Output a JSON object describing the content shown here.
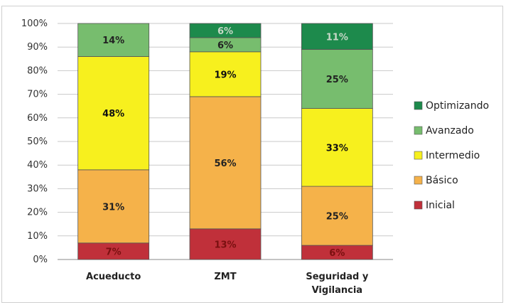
{
  "chart_data": {
    "type": "bar",
    "stacked": true,
    "percent": true,
    "categories": [
      [
        "Acueducto"
      ],
      [
        "ZMT"
      ],
      [
        "Seguridad y",
        "Vigilancia"
      ]
    ],
    "yticks": [
      "0%",
      "10%",
      "20%",
      "30%",
      "40%",
      "50%",
      "60%",
      "70%",
      "80%",
      "90%",
      "100%"
    ],
    "ylim": [
      0,
      100
    ],
    "grid": true,
    "legend_position": "right",
    "series": [
      {
        "name": "Inicial",
        "color": "#c0303a",
        "values": [
          7,
          13,
          6
        ],
        "labels": [
          "7%",
          "13%",
          "6%"
        ],
        "label_color": "#7a1010"
      },
      {
        "name": "Básico",
        "color": "#f5b24a",
        "values": [
          31,
          56,
          25
        ],
        "labels": [
          "31%",
          "56%",
          "25%"
        ],
        "label_color": "#222222"
      },
      {
        "name": "Intermedio",
        "color": "#f7f01e",
        "values": [
          48,
          19,
          33
        ],
        "labels": [
          "48%",
          "19%",
          "33%"
        ],
        "label_color": "#111111"
      },
      {
        "name": "Avanzado",
        "color": "#77bd6e",
        "values": [
          14,
          6,
          25
        ],
        "labels": [
          "14%",
          "6%",
          "25%"
        ],
        "label_color": "#222222"
      },
      {
        "name": "Optimizando",
        "color": "#1d8a4c",
        "values": [
          0,
          6,
          11
        ],
        "labels": [
          "",
          "6%",
          "11%"
        ],
        "label_color": "#c8d8c8"
      }
    ]
  }
}
